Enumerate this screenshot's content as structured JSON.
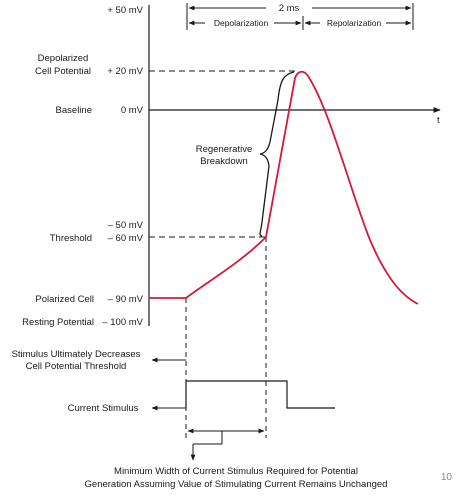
{
  "axis": {
    "y_ticks": [
      {
        "label": "+ 50 mV"
      },
      {
        "label": "+ 20 mV"
      },
      {
        "label": "0 mV"
      },
      {
        "label": "– 50 mV"
      },
      {
        "label": "– 60 mV"
      },
      {
        "label": "– 90 mV"
      },
      {
        "label": "– 100 mV"
      }
    ],
    "t_label": "t"
  },
  "row_labels": {
    "depolarized_line1": "Depolarized",
    "depolarized_line2": "Cell Potential",
    "baseline": "Baseline",
    "threshold": "Threshold",
    "polarized": "Polarized Cell",
    "resting": "Resting Potential"
  },
  "timing": {
    "total": "2 ms",
    "depolarization": "Depolarization",
    "repolarization": "Repolarization"
  },
  "annotations": {
    "regenerative_line1": "Regenerative",
    "regenerative_line2": "Breakdown",
    "stimulus_line1": "Stimulus Ultimately Decreases",
    "stimulus_line2": "Cell Potential Threshold",
    "current_stimulus": "Current Stimulus",
    "min_width_line1": "Minimum Width of Current Stimulus Required for Potential",
    "min_width_line2": "Generation Assuming Value of Stimulating Current Remains Unchanged"
  },
  "page_number": "10",
  "colors": {
    "action_potential": "#d8173a",
    "ink": "#1a1a1a"
  }
}
